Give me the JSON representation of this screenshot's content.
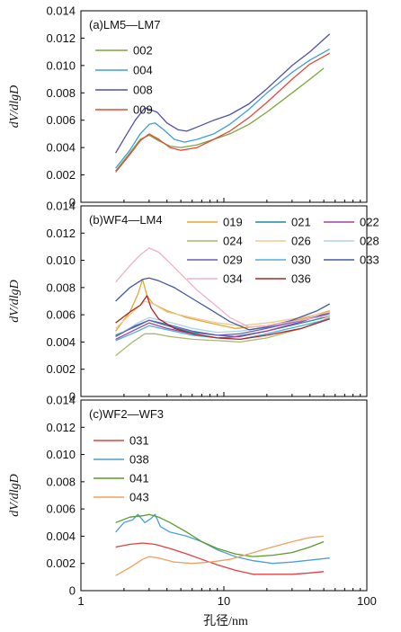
{
  "chart_data": [
    {
      "type": "line",
      "title": "(a)LM5—LM7",
      "xlabel": "",
      "ylabel": "dV/dlgD",
      "xscale": "log",
      "xlim": [
        1,
        100
      ],
      "ylim": [
        0,
        0.014
      ],
      "yticks": [
        "0",
        "0.002",
        "0.004",
        "0.006",
        "0.008",
        "0.010",
        "0.012",
        "0.014"
      ],
      "legend_position": "top-left",
      "series": [
        {
          "name": "002",
          "color": "#7aa63a",
          "x": [
            1.75,
            2.2,
            2.6,
            3.0,
            3.5,
            4.2,
            5.0,
            6.5,
            8.5,
            11,
            15,
            20,
            30,
            40,
            50
          ],
          "y": [
            0.0023,
            0.0036,
            0.0046,
            0.0049,
            0.0045,
            0.0041,
            0.004,
            0.0042,
            0.0046,
            0.005,
            0.0057,
            0.0066,
            0.008,
            0.009,
            0.0098
          ]
        },
        {
          "name": "004",
          "color": "#3a9fd6",
          "x": [
            1.75,
            2.2,
            2.6,
            3.0,
            3.3,
            3.8,
            4.5,
            5.3,
            6.5,
            8.5,
            11,
            15,
            20,
            30,
            40,
            55
          ],
          "y": [
            0.0025,
            0.0038,
            0.005,
            0.0057,
            0.0058,
            0.0053,
            0.0046,
            0.0044,
            0.0046,
            0.005,
            0.0057,
            0.0068,
            0.008,
            0.0095,
            0.0104,
            0.0112
          ]
        },
        {
          "name": "008",
          "color": "#5050a6",
          "x": [
            1.75,
            2.1,
            2.4,
            2.8,
            3.0,
            3.4,
            4.0,
            4.8,
            5.5,
            6.5,
            8.5,
            11,
            15,
            20,
            30,
            40,
            55
          ],
          "y": [
            0.0036,
            0.005,
            0.006,
            0.0069,
            0.0068,
            0.0066,
            0.0058,
            0.0053,
            0.0052,
            0.0055,
            0.006,
            0.0064,
            0.0072,
            0.0083,
            0.01,
            0.011,
            0.0123
          ]
        },
        {
          "name": "009",
          "color": "#e04a3c",
          "x": [
            1.75,
            2.2,
            2.6,
            3.0,
            3.5,
            4.2,
            5.0,
            6.5,
            8.5,
            11,
            15,
            20,
            30,
            40,
            55
          ],
          "y": [
            0.0022,
            0.0035,
            0.0045,
            0.005,
            0.0046,
            0.004,
            0.0038,
            0.004,
            0.0046,
            0.0052,
            0.0062,
            0.0073,
            0.009,
            0.0101,
            0.0109
          ]
        }
      ]
    },
    {
      "type": "line",
      "title": "(b)WF4—LM4",
      "xlabel": "",
      "ylabel": "dV/dlgD",
      "xscale": "log",
      "xlim": [
        1,
        100
      ],
      "ylim": [
        0,
        0.014
      ],
      "yticks": [
        "0",
        "0.002",
        "0.004",
        "0.006",
        "0.008",
        "0.010",
        "0.012",
        "0.014"
      ],
      "legend_position": "top-right",
      "series": [
        {
          "name": "019",
          "color": "#e0a830",
          "x": [
            1.75,
            2.2,
            2.5,
            2.7,
            2.9,
            3.2,
            4.0,
            5.5,
            8,
            12,
            20,
            35,
            55
          ],
          "y": [
            0.0048,
            0.0062,
            0.0075,
            0.0086,
            0.0074,
            0.0068,
            0.0063,
            0.0058,
            0.0054,
            0.005,
            0.0052,
            0.0057,
            0.0063
          ]
        },
        {
          "name": "021",
          "color": "#1e8a9a",
          "x": [
            1.75,
            2.5,
            3.0,
            4.0,
            6,
            9,
            12,
            20,
            35,
            55
          ],
          "y": [
            0.0045,
            0.0052,
            0.0056,
            0.0052,
            0.0047,
            0.0045,
            0.0044,
            0.0048,
            0.0054,
            0.0059
          ]
        },
        {
          "name": "022",
          "color": "#a040a0",
          "x": [
            1.75,
            2.5,
            3.0,
            4.0,
            6,
            9,
            13,
            20,
            35,
            55
          ],
          "y": [
            0.0042,
            0.005,
            0.0054,
            0.005,
            0.0046,
            0.0043,
            0.0044,
            0.0048,
            0.0055,
            0.0062
          ]
        },
        {
          "name": "024",
          "color": "#a8b870",
          "x": [
            1.75,
            2.3,
            2.8,
            3.3,
            4.2,
            6,
            9,
            13,
            20,
            35,
            55
          ],
          "y": [
            0.003,
            0.004,
            0.0046,
            0.0046,
            0.0044,
            0.0042,
            0.0041,
            0.004,
            0.0043,
            0.005,
            0.0058
          ]
        },
        {
          "name": "026",
          "color": "#f2c890",
          "x": [
            1.75,
            2.3,
            2.8,
            3.2,
            4.0,
            6,
            9,
            13,
            20,
            35,
            55
          ],
          "y": [
            0.005,
            0.0062,
            0.007,
            0.0068,
            0.0062,
            0.0058,
            0.0054,
            0.0052,
            0.0054,
            0.0058,
            0.0062
          ]
        },
        {
          "name": "028",
          "color": "#a8d4e6",
          "x": [
            1.75,
            2.5,
            3.0,
            4.0,
            6,
            9,
            13,
            20,
            35,
            55
          ],
          "y": [
            0.0044,
            0.0054,
            0.0058,
            0.0055,
            0.005,
            0.0047,
            0.0048,
            0.0051,
            0.0056,
            0.006
          ]
        },
        {
          "name": "029",
          "color": "#6a5ab8",
          "x": [
            1.75,
            2.4,
            3.0,
            4.0,
            6,
            9,
            13,
            20,
            35,
            55
          ],
          "y": [
            0.0044,
            0.0052,
            0.0056,
            0.0053,
            0.0048,
            0.0045,
            0.0046,
            0.005,
            0.0056,
            0.0061
          ]
        },
        {
          "name": "030",
          "color": "#4ab0e0",
          "x": [
            1.75,
            2.5,
            3.0,
            4.0,
            6,
            9,
            13,
            20,
            35,
            55
          ],
          "y": [
            0.0041,
            0.0048,
            0.0052,
            0.0049,
            0.0045,
            0.0043,
            0.0042,
            0.0046,
            0.0052,
            0.0057
          ]
        },
        {
          "name": "033",
          "color": "#405aa0",
          "x": [
            1.75,
            2.2,
            2.7,
            3.0,
            3.5,
            4.5,
            6,
            8,
            11,
            15,
            20,
            30,
            45,
            55
          ],
          "y": [
            0.007,
            0.008,
            0.0086,
            0.0087,
            0.0085,
            0.008,
            0.0072,
            0.0064,
            0.0055,
            0.0049,
            0.0051,
            0.0056,
            0.0063,
            0.0068
          ]
        },
        {
          "name": "034",
          "color": "#f0b0c4",
          "x": [
            1.75,
            2.2,
            2.6,
            3.0,
            3.5,
            4.2,
            5.0,
            6.5,
            8.5,
            11,
            15,
            20,
            30,
            45,
            55
          ],
          "y": [
            0.0084,
            0.0096,
            0.0104,
            0.0109,
            0.0106,
            0.0098,
            0.009,
            0.0078,
            0.0068,
            0.0058,
            0.0051,
            0.0052,
            0.0055,
            0.0058,
            0.0059
          ]
        },
        {
          "name": "036",
          "color": "#a82828",
          "x": [
            1.75,
            2.2,
            2.6,
            2.9,
            3.1,
            3.5,
            4.5,
            6,
            9,
            13,
            20,
            35,
            55
          ],
          "y": [
            0.0054,
            0.0062,
            0.0067,
            0.0074,
            0.0065,
            0.0057,
            0.005,
            0.0046,
            0.0043,
            0.0042,
            0.0045,
            0.005,
            0.0057
          ]
        }
      ]
    },
    {
      "type": "line",
      "title": "(c)WF2—WF3",
      "xlabel": "孔径/nm",
      "ylabel": "dV/dlgD",
      "xscale": "log",
      "xlim": [
        1,
        100
      ],
      "ylim": [
        0,
        0.014
      ],
      "yticks": [
        "0",
        "0.002",
        "0.004",
        "0.006",
        "0.008",
        "0.010",
        "0.012",
        "0.014"
      ],
      "xticks": [
        "1",
        "10",
        "100"
      ],
      "legend_position": "top-left",
      "series": [
        {
          "name": "031",
          "color": "#e04040",
          "x": [
            1.75,
            2.2,
            2.7,
            3.3,
            4.2,
            5.5,
            7,
            9,
            12,
            16,
            22,
            30,
            40,
            50
          ],
          "y": [
            0.0032,
            0.0034,
            0.0035,
            0.0034,
            0.0031,
            0.0027,
            0.0023,
            0.0019,
            0.0015,
            0.0012,
            0.0012,
            0.0012,
            0.0013,
            0.0014
          ]
        },
        {
          "name": "038",
          "color": "#4aa0d8",
          "x": [
            1.75,
            2.0,
            2.3,
            2.5,
            2.8,
            3.1,
            3.3,
            3.6,
            4.2,
            5.5,
            7,
            9,
            12,
            16,
            22,
            30,
            45,
            55
          ],
          "y": [
            0.0043,
            0.005,
            0.0052,
            0.0056,
            0.005,
            0.0053,
            0.0056,
            0.0047,
            0.0043,
            0.004,
            0.0036,
            0.003,
            0.0025,
            0.0022,
            0.002,
            0.0021,
            0.0023,
            0.0024
          ]
        },
        {
          "name": "041",
          "color": "#5a9a2a",
          "x": [
            1.75,
            2.2,
            2.7,
            3.0,
            3.5,
            4.2,
            5.5,
            7,
            9,
            12,
            16,
            22,
            30,
            40,
            50
          ],
          "y": [
            0.005,
            0.0054,
            0.0055,
            0.0056,
            0.0054,
            0.005,
            0.0043,
            0.0036,
            0.0031,
            0.0027,
            0.0025,
            0.0026,
            0.0028,
            0.0032,
            0.0036
          ]
        },
        {
          "name": "043",
          "color": "#f0a060",
          "x": [
            1.75,
            2.2,
            2.7,
            3.0,
            3.5,
            4.5,
            6,
            8,
            11,
            15,
            20,
            30,
            40,
            50
          ],
          "y": [
            0.0011,
            0.0017,
            0.0023,
            0.0025,
            0.0024,
            0.0021,
            0.002,
            0.0021,
            0.0023,
            0.0027,
            0.0031,
            0.0036,
            0.0039,
            0.004
          ]
        }
      ]
    }
  ]
}
